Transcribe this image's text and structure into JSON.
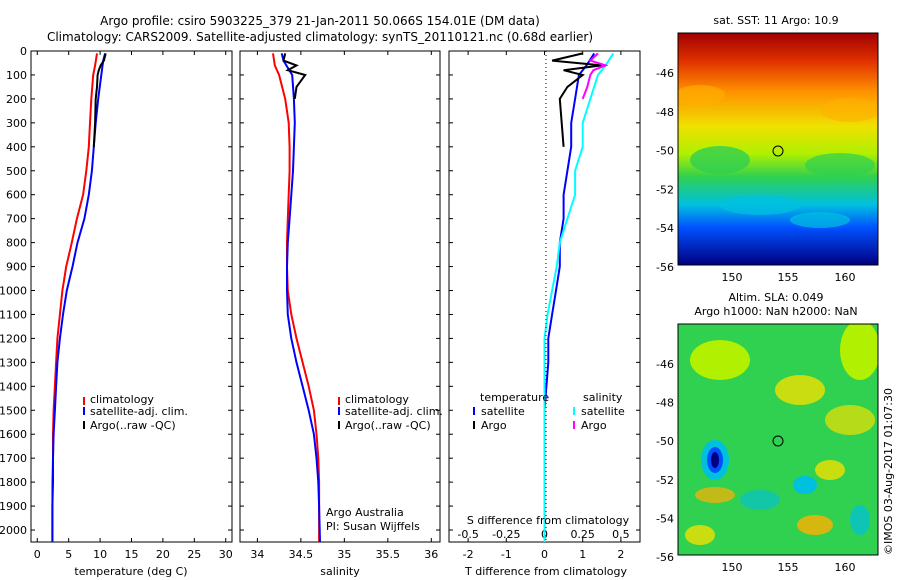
{
  "titles": {
    "line1": "Argo profile: csiro 5903225_379 21-Jan-2011 50.066S 154.01E (DM data)",
    "line2": "Climatology: CARS2009. Satellite-adjusted climatology: synTS_20110121.nc (0.68d earlier)"
  },
  "colors": {
    "climatology": "#ff0000",
    "satellite": "#0000ff",
    "argo": "#000000",
    "s_satellite": "#00ffff",
    "s_argo": "#ff00ff"
  },
  "credit": {
    "line1": "Argo Australia",
    "line2": "PI: Susan Wijffels"
  },
  "stamp": "©IMOS 03-Aug-2017 01:07:30",
  "maps": {
    "sst": {
      "title": "sat. SST: 11 Argo: 10.9",
      "xticks": [
        "150",
        "155",
        "160"
      ],
      "yticks": [
        "-46",
        "-48",
        "-50",
        "-52",
        "-54",
        "-56"
      ]
    },
    "sla": {
      "title1": "Altim. SLA: 0.049",
      "title2": "Argo h1000: NaN h2000: NaN",
      "xticks": [
        "150",
        "155",
        "160"
      ],
      "yticks": [
        "-46",
        "-48",
        "-50",
        "-52",
        "-54",
        "-56"
      ]
    }
  },
  "chart_data": [
    {
      "type": "line",
      "xlabel": "temperature (deg C)",
      "ylabel": "",
      "xlim": [
        -1,
        31
      ],
      "ylim": [
        2050,
        0
      ],
      "xticks": [
        "0",
        "5",
        "10",
        "15",
        "20",
        "25",
        "30"
      ],
      "yticks": [
        "0",
        "100",
        "200",
        "300",
        "400",
        "500",
        "600",
        "700",
        "800",
        "900",
        "1000",
        "1100",
        "1200",
        "1300",
        "1400",
        "1500",
        "1600",
        "1700",
        "1800",
        "1900",
        "2000"
      ],
      "legend": [
        "climatology",
        "satellite-adj. clim.",
        "Argo(..raw -QC)"
      ],
      "legend_position": "lower-middle",
      "series": [
        {
          "name": "climatology",
          "color": "#ff0000",
          "x": [
            9.5,
            9.2,
            8.9,
            8.6,
            8.4,
            8.2,
            7.8,
            7.3,
            6.3,
            5.5,
            4.6,
            4.0,
            3.6,
            3.2,
            3.0,
            2.8,
            2.6,
            2.5,
            2.5,
            2.4,
            2.4
          ],
          "y": [
            10,
            60,
            100,
            200,
            300,
            400,
            500,
            600,
            700,
            800,
            900,
            1000,
            1100,
            1200,
            1300,
            1400,
            1500,
            1600,
            1700,
            1800,
            2050
          ]
        },
        {
          "name": "satellite-adj. clim.",
          "color": "#0000ff",
          "x": [
            10.8,
            10.5,
            10.2,
            9.7,
            9.3,
            9.0,
            8.7,
            8.2,
            7.5,
            6.4,
            5.6,
            4.7,
            4.1,
            3.6,
            3.2,
            3.0,
            2.8,
            2.6,
            2.5,
            2.5,
            2.4,
            2.4
          ],
          "y": [
            10,
            40,
            100,
            200,
            300,
            400,
            500,
            600,
            700,
            800,
            900,
            1000,
            1100,
            1200,
            1300,
            1400,
            1500,
            1600,
            1700,
            1800,
            1900,
            2050
          ]
        },
        {
          "name": "Argo(..raw -QC)",
          "color": "#000000",
          "x": [
            10.9,
            10.6,
            10.1,
            9.8,
            9.6,
            9.5,
            9.3,
            9.2,
            9.0
          ],
          "y": [
            10,
            40,
            60,
            80,
            100,
            150,
            200,
            300,
            400
          ]
        }
      ]
    },
    {
      "type": "line",
      "xlabel": "salinity",
      "ylabel": "",
      "xlim": [
        33.8,
        36.1
      ],
      "ylim": [
        2050,
        0
      ],
      "xticks": [
        "34",
        "34.5",
        "35",
        "35.5",
        "36"
      ],
      "legend": [
        "climatology",
        "satellite-adj. clim.",
        "Argo(..raw -QC)"
      ],
      "legend_position": "lower-middle",
      "series": [
        {
          "name": "climatology",
          "color": "#ff0000",
          "x": [
            34.18,
            34.2,
            34.25,
            34.32,
            34.36,
            34.37,
            34.37,
            34.36,
            34.35,
            34.34,
            34.34,
            34.35,
            34.39,
            34.45,
            34.52,
            34.59,
            34.65,
            34.68,
            34.7,
            34.71,
            34.71
          ],
          "y": [
            10,
            60,
            100,
            200,
            300,
            400,
            500,
            600,
            700,
            800,
            900,
            1000,
            1100,
            1200,
            1300,
            1400,
            1500,
            1600,
            1700,
            1800,
            2050
          ]
        },
        {
          "name": "satellite-adj. clim.",
          "color": "#0000ff",
          "x": [
            34.28,
            34.3,
            34.4,
            34.42,
            34.43,
            34.42,
            34.41,
            34.39,
            34.37,
            34.35,
            34.34,
            34.34,
            34.35,
            34.39,
            34.45,
            34.52,
            34.59,
            34.65,
            34.68,
            34.7,
            34.71,
            34.72
          ],
          "y": [
            10,
            40,
            100,
            200,
            300,
            400,
            500,
            600,
            700,
            800,
            900,
            1000,
            1100,
            1200,
            1300,
            1400,
            1500,
            1600,
            1700,
            1800,
            1900,
            2050
          ]
        },
        {
          "name": "Argo(..raw -QC)",
          "color": "#000000",
          "x": [
            34.32,
            34.3,
            34.45,
            34.35,
            34.55,
            34.45,
            34.43
          ],
          "y": [
            10,
            40,
            60,
            80,
            100,
            150,
            200
          ]
        }
      ]
    },
    {
      "type": "line",
      "xlabel": "T difference from climatology",
      "xlabel_top": "S difference from climatology",
      "xlim": [
        -2.5,
        2.5
      ],
      "ylim": [
        2050,
        0
      ],
      "xticks": [
        "-2",
        "-1",
        "0",
        "1",
        "2"
      ],
      "xticks_top": [
        "-0.5",
        "-0.25",
        "0",
        "0.25",
        "0.5"
      ],
      "legend_left_title": "temperature",
      "legend_right_title": "salinity",
      "legend_left": [
        "satellite",
        "Argo"
      ],
      "legend_right": [
        "satellite",
        "Argo"
      ],
      "legend_position": "lower-middle",
      "series": [
        {
          "name": "T satellite",
          "color": "#0000ff",
          "x": [
            1.3,
            1.1,
            0.9,
            0.8,
            0.7,
            0.7,
            0.6,
            0.5,
            0.5,
            0.4,
            0.4,
            0.3,
            0.2,
            0.1,
            0.1,
            0.05,
            0.0,
            0.0,
            0.0,
            0.0
          ],
          "y": [
            10,
            60,
            100,
            200,
            300,
            400,
            500,
            600,
            700,
            800,
            900,
            1000,
            1100,
            1200,
            1300,
            1400,
            1500,
            1600,
            1700,
            2050
          ]
        },
        {
          "name": "T Argo",
          "color": "#000000",
          "x": [
            1.0,
            0.2,
            1.5,
            0.5,
            1.0,
            0.6,
            0.4,
            0.5
          ],
          "y": [
            10,
            40,
            60,
            80,
            100,
            150,
            200,
            400
          ]
        },
        {
          "name": "S satellite",
          "color": "#00ffff",
          "x": [
            0.45,
            0.4,
            0.35,
            0.3,
            0.25,
            0.25,
            0.2,
            0.2,
            0.15,
            0.1,
            0.08,
            0.05,
            0.02,
            0.0,
            0.0,
            0.0
          ],
          "y": [
            10,
            60,
            100,
            200,
            300,
            400,
            500,
            600,
            700,
            800,
            900,
            1000,
            1100,
            1200,
            1300,
            2050
          ]
        },
        {
          "name": "S Argo",
          "color": "#ff00ff",
          "x": [
            0.35,
            0.3,
            0.4,
            0.32,
            0.3,
            0.28,
            0.25
          ],
          "y": [
            10,
            40,
            60,
            80,
            100,
            150,
            200
          ]
        }
      ]
    }
  ]
}
